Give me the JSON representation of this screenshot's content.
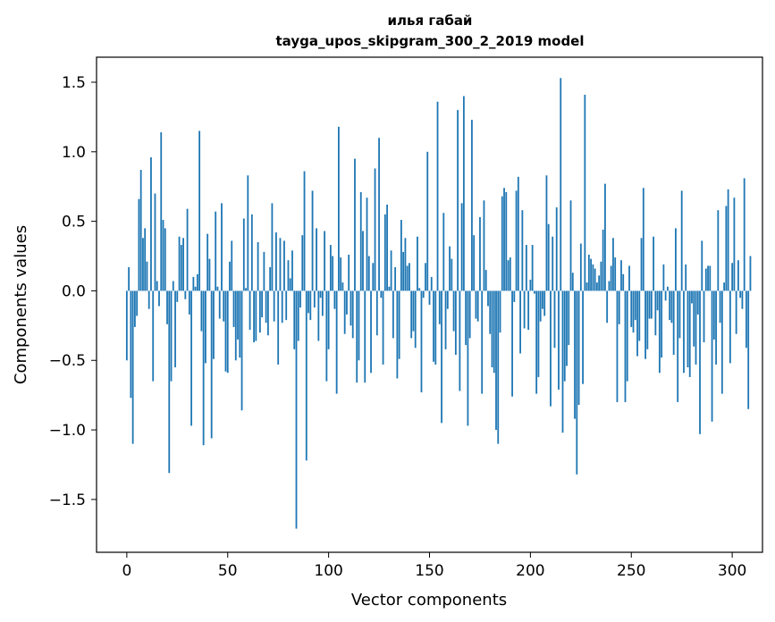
{
  "chart_data": {
    "type": "bar",
    "title": "илья габай",
    "subtitle": "tayga_upos_skipgram_300_2_2019 model",
    "xlabel": "Vector components",
    "ylabel": "Components values",
    "xlim": [
      -15,
      315
    ],
    "ylim": [
      -1.88,
      1.68
    ],
    "xticks": [
      0,
      50,
      100,
      150,
      200,
      250,
      300
    ],
    "yticks": [
      -1.5,
      -1.0,
      -0.5,
      0.0,
      0.5,
      1.0,
      1.5
    ],
    "ytick_labels": [
      "−1.5",
      "−1.0",
      "−0.5",
      "0.0",
      "0.5",
      "1.0",
      "1.5"
    ],
    "bar_color": "#1f77b4",
    "grid": false,
    "legend": "none",
    "values": [
      -0.5,
      0.17,
      -0.77,
      -1.1,
      -0.26,
      -0.18,
      0.66,
      0.87,
      0.38,
      0.45,
      0.21,
      -0.13,
      0.96,
      -0.65,
      0.7,
      0.07,
      -0.11,
      1.14,
      0.51,
      0.45,
      -0.24,
      -1.31,
      -0.65,
      0.07,
      -0.55,
      -0.08,
      0.39,
      0.33,
      0.38,
      -0.06,
      0.59,
      -0.17,
      -0.97,
      0.1,
      0.03,
      0.12,
      1.15,
      -0.29,
      -1.11,
      -0.52,
      0.41,
      0.23,
      -1.06,
      -0.49,
      0.57,
      0.03,
      -0.2,
      0.63,
      -0.22,
      -0.58,
      -0.59,
      0.21,
      0.36,
      -0.26,
      -0.5,
      -0.35,
      -0.48,
      -0.86,
      0.52,
      0.02,
      0.83,
      -0.28,
      0.55,
      -0.37,
      -0.36,
      0.35,
      -0.3,
      -0.19,
      0.28,
      -0.23,
      -0.32,
      0.17,
      0.63,
      -0.22,
      0.42,
      -0.53,
      0.38,
      -0.23,
      0.36,
      -0.21,
      0.22,
      0.09,
      0.29,
      -0.42,
      -1.71,
      -0.36,
      -0.12,
      0.4,
      0.86,
      -1.22,
      -0.16,
      -0.21,
      0.72,
      -0.12,
      0.45,
      -0.36,
      -0.05,
      -0.18,
      0.43,
      -0.65,
      -0.42,
      0.33,
      0.25,
      -0.13,
      -0.74,
      1.18,
      0.24,
      0.06,
      -0.31,
      -0.17,
      0.26,
      -0.25,
      -0.34,
      0.95,
      -0.66,
      -0.5,
      0.71,
      0.43,
      -0.66,
      0.67,
      0.25,
      -0.59,
      0.2,
      0.88,
      -0.32,
      1.1,
      -0.05,
      -0.53,
      0.55,
      0.62,
      0.03,
      0.29,
      -0.34,
      0.17,
      -0.63,
      -0.49,
      0.51,
      0.28,
      0.38,
      0.18,
      0.2,
      -0.34,
      -0.29,
      -0.41,
      0.39,
      0.02,
      -0.73,
      -0.05,
      0.2,
      1.0,
      -0.1,
      0.1,
      -0.51,
      -0.53,
      1.36,
      -0.24,
      -0.95,
      0.56,
      -0.42,
      -0.13,
      0.32,
      0.23,
      -0.29,
      -0.46,
      1.3,
      -0.72,
      0.63,
      1.4,
      -0.39,
      -0.97,
      -0.34,
      1.23,
      0.4,
      -0.2,
      -0.22,
      0.53,
      -0.74,
      0.65,
      0.15,
      -0.11,
      -0.31,
      -0.55,
      -0.59,
      -1.0,
      -1.1,
      -0.3,
      0.68,
      0.74,
      0.71,
      0.22,
      0.24,
      -0.76,
      -0.08,
      0.72,
      0.82,
      -0.45,
      0.58,
      -0.27,
      0.33,
      -0.28,
      0.08,
      0.33,
      -0.02,
      -0.74,
      -0.62,
      -0.22,
      -0.13,
      -0.18,
      0.83,
      0.48,
      -0.83,
      0.39,
      -0.41,
      0.6,
      -0.71,
      1.53,
      -1.02,
      -0.65,
      -0.54,
      -0.39,
      0.65,
      0.13,
      -0.92,
      -1.32,
      -0.82,
      0.34,
      -0.67,
      1.41,
      0.06,
      0.26,
      0.23,
      0.19,
      0.16,
      0.06,
      0.11,
      0.21,
      0.44,
      0.77,
      -0.23,
      0.07,
      0.18,
      0.38,
      0.24,
      -0.8,
      -0.24,
      0.22,
      0.12,
      -0.8,
      -0.65,
      0.18,
      -0.26,
      -0.3,
      -0.21,
      -0.47,
      -0.36,
      0.38,
      0.74,
      -0.49,
      -0.42,
      -0.2,
      -0.2,
      0.39,
      -0.32,
      -0.14,
      -0.59,
      -0.48,
      0.19,
      -0.07,
      0.03,
      -0.21,
      -0.23,
      -0.46,
      0.45,
      -0.8,
      -0.34,
      0.72,
      -0.59,
      0.19,
      -0.55,
      -0.62,
      -0.09,
      -0.4,
      -0.53,
      -0.17,
      -1.03,
      0.36,
      -0.37,
      0.16,
      0.18,
      0.18,
      -0.94,
      -0.35,
      -0.53,
      0.58,
      -0.23,
      -0.74,
      0.06,
      0.61,
      0.73,
      -0.52,
      0.2,
      0.67,
      -0.31,
      0.22,
      -0.05,
      -0.13,
      0.81,
      -0.41,
      -0.85,
      0.25
    ]
  }
}
